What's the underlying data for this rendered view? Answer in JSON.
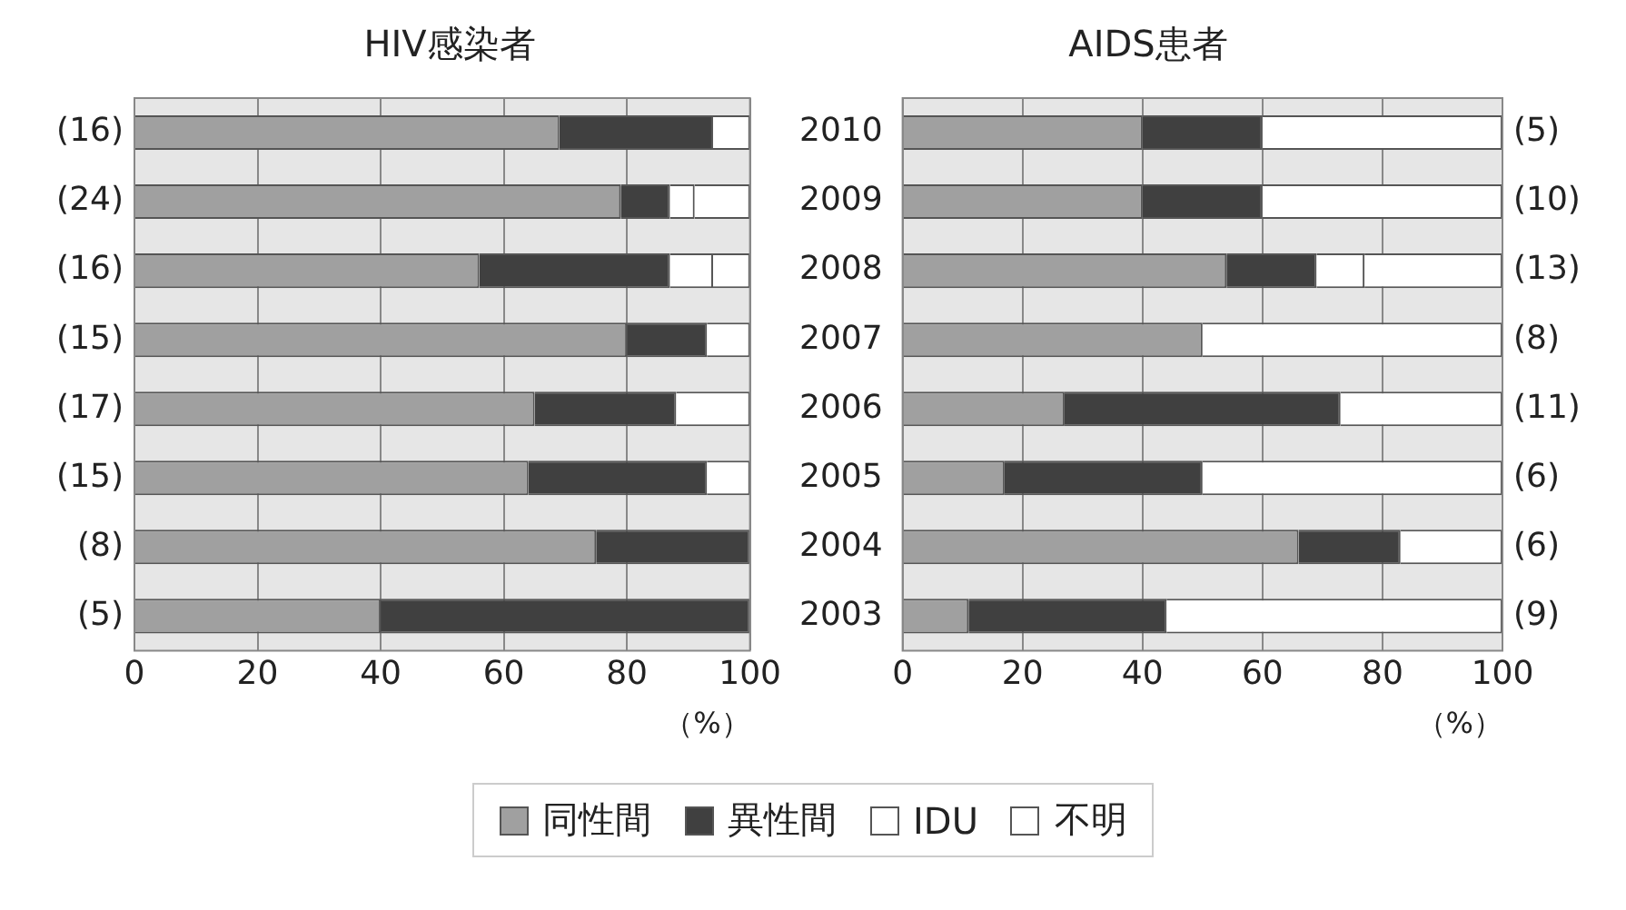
{
  "chart_data": [
    {
      "type": "bar",
      "orientation": "horizontal",
      "stacked": true,
      "title": "HIV感染者",
      "xlabel": "（%）",
      "categories": [
        "2010",
        "2009",
        "2008",
        "2007",
        "2006",
        "2005",
        "2004",
        "2003"
      ],
      "tick_labels": "x",
      "xlim": [
        0,
        100
      ],
      "xticks": [
        0,
        20,
        40,
        60,
        80,
        100
      ],
      "grid": "x",
      "legend": "bottom",
      "series": [
        {
          "name": "同性間",
          "color": "#a0a0a0",
          "values": [
            69,
            79,
            56,
            80,
            65,
            64,
            75,
            40
          ]
        },
        {
          "name": "異性間",
          "color": "#404040",
          "values": [
            25,
            8,
            31,
            13,
            23,
            29,
            25,
            60
          ]
        },
        {
          "name": "IDU",
          "color": "#ffffff",
          "values": [
            0,
            4,
            7,
            0,
            0,
            0,
            0,
            0
          ]
        },
        {
          "name": "不明",
          "color": "#ffffff",
          "values": [
            6,
            9,
            6,
            7,
            12,
            7,
            0,
            0
          ]
        }
      ],
      "annotations": [
        "(16)",
        "(24)",
        "(16)",
        "(15)",
        "(17)",
        "(15)",
        "(8)",
        "(5)"
      ]
    },
    {
      "type": "bar",
      "orientation": "horizontal",
      "stacked": true,
      "title": "AIDS患者",
      "xlabel": "（%）",
      "categories": [
        "2010",
        "2009",
        "2008",
        "2007",
        "2006",
        "2005",
        "2004",
        "2003"
      ],
      "xlim": [
        0,
        100
      ],
      "xticks": [
        0,
        20,
        40,
        60,
        80,
        100
      ],
      "grid": "x",
      "series": [
        {
          "color": "#a0a0a0",
          "values": [
            40,
            40,
            54,
            50,
            27,
            17,
            66,
            11
          ]
        },
        {
          "color": "#404040",
          "values": [
            20,
            20,
            15,
            0,
            46,
            33,
            17,
            33
          ]
        },
        {
          "color": "#ffffff",
          "values": [
            0,
            0,
            8,
            0,
            0,
            0,
            0,
            0
          ]
        },
        {
          "color": "#ffffff",
          "values": [
            40,
            40,
            23,
            50,
            27,
            50,
            17,
            56
          ]
        }
      ],
      "annotations": [
        "(5)",
        "(10)",
        "(13)",
        "(8)",
        "(11)",
        "(6)",
        "(6)",
        "(9)"
      ]
    }
  ]
}
